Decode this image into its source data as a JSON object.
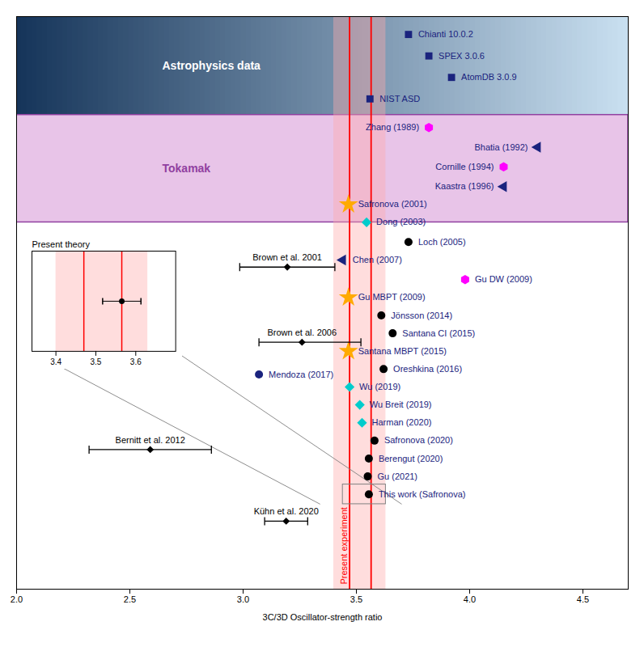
{
  "chart_data": {
    "type": "scatter",
    "xlabel": "3C/3D Oscillator-strength ratio",
    "xlim": [
      2.0,
      4.7
    ],
    "xticks": [
      {
        "value": 2.0,
        "label": "2.0"
      },
      2.5,
      {
        "value": 3.0,
        "label": "3.0"
      },
      3.5,
      {
        "value": 4.0,
        "label": "4.0"
      },
      4.5
    ],
    "ylim": [
      0,
      32
    ],
    "yticks": [],
    "tick_labels": "x",
    "bands": [
      {
        "label": "Astrophysics data",
        "y1": 26.5,
        "y2": 32.0,
        "gradient": [
          "#16355a",
          "#c8dff0"
        ],
        "label_color": "#ffffff"
      },
      {
        "label": "Tokamak",
        "y1": 20.5,
        "y2": 26.5,
        "color": "#e8c4e8",
        "border_color": "#9040a0",
        "label_color": "#9040a0"
      }
    ],
    "present_experiment": {
      "label": "Present experiment",
      "x": [
        3.47,
        3.565
      ],
      "band": [
        3.4,
        3.63
      ],
      "color": "red",
      "band_color": "#ffaaaa"
    },
    "points": [
      {
        "x": 3.73,
        "y": 31.0,
        "label": "Chianti 10.0.2",
        "marker": "square",
        "color": "#1a237e",
        "label_color": "#1a237e",
        "label_side": "right"
      },
      {
        "x": 3.82,
        "y": 29.8,
        "label": "SPEX 3.0.6",
        "marker": "square",
        "color": "#1a237e",
        "label_color": "#1a237e",
        "label_side": "right"
      },
      {
        "x": 3.92,
        "y": 28.6,
        "label": "AtomDB 3.0.9",
        "marker": "square",
        "color": "#1a237e",
        "label_color": "#1a237e",
        "label_side": "right"
      },
      {
        "x": 3.56,
        "y": 27.4,
        "label": "NIST ASD",
        "marker": "square",
        "color": "#1a237e",
        "label_color": "#1a237e",
        "label_side": "right"
      },
      {
        "x": 3.82,
        "y": 25.8,
        "label": "Zhang (1989)",
        "marker": "hexagon",
        "color": "#ff00ff",
        "label_color": "#1a237e",
        "label_side": "left"
      },
      {
        "x": 4.3,
        "y": 24.7,
        "label": "Bhatia (1992)",
        "marker": "triangle-left",
        "color": "#1a237e",
        "label_color": "#1a237e",
        "label_side": "left"
      },
      {
        "x": 4.15,
        "y": 23.6,
        "label": "Cornille (1994)",
        "marker": "hexagon",
        "color": "#ff00ff",
        "label_color": "#1a237e",
        "label_side": "left"
      },
      {
        "x": 4.15,
        "y": 22.5,
        "label": "Kaastra (1996)",
        "marker": "triangle-left",
        "color": "#1a237e",
        "label_color": "#1a237e",
        "label_side": "left"
      },
      {
        "x": 3.465,
        "y": 21.5,
        "label": "Safronova (2001)",
        "marker": "star",
        "color": "#ffaa00",
        "label_color": "#1a237e",
        "label_side": "right"
      },
      {
        "x": 3.545,
        "y": 20.5,
        "label": "Dong (2003)",
        "marker": "diamond",
        "color": "#00cccc",
        "label_color": "#1a237e",
        "label_side": "right"
      },
      {
        "x": 3.73,
        "y": 19.4,
        "label": "Loch (2005)",
        "marker": "circle",
        "color": "#000000",
        "label_color": "#1a237e",
        "label_side": "right"
      },
      {
        "x": 3.44,
        "y": 18.4,
        "label": "Chen (2007)",
        "marker": "triangle-left",
        "color": "#1a237e",
        "label_color": "#1a237e",
        "label_side": "right"
      },
      {
        "x": 3.98,
        "y": 17.3,
        "label": "Gu DW (2009)",
        "marker": "hexagon",
        "color": "#ff00ff",
        "label_color": "#1a237e",
        "label_side": "right"
      },
      {
        "x": 3.465,
        "y": 16.3,
        "label": "Gu MBPT (2009)",
        "marker": "star",
        "color": "#ffaa00",
        "label_color": "#1a237e",
        "label_side": "right"
      },
      {
        "x": 3.61,
        "y": 15.3,
        "label": "Jönsson (2014)",
        "marker": "circle",
        "color": "#000000",
        "label_color": "#1a237e",
        "label_side": "right"
      },
      {
        "x": 3.66,
        "y": 14.3,
        "label": "Santana CI (2015)",
        "marker": "circle",
        "color": "#000000",
        "label_color": "#1a237e",
        "label_side": "right"
      },
      {
        "x": 3.465,
        "y": 13.3,
        "label": "Santana MBPT (2015)",
        "marker": "star",
        "color": "#ffaa00",
        "label_color": "#1a237e",
        "label_side": "right"
      },
      {
        "x": 3.62,
        "y": 12.3,
        "label": "Oreshkina (2016)",
        "marker": "circle",
        "color": "#000000",
        "label_color": "#1a237e",
        "label_side": "right"
      },
      {
        "x": 3.47,
        "y": 11.3,
        "label": "Wu (2019)",
        "marker": "diamond",
        "color": "#00cccc",
        "label_color": "#1a237e",
        "label_side": "right"
      },
      {
        "x": 3.515,
        "y": 10.3,
        "label": "Wu Breit (2019)",
        "marker": "diamond",
        "color": "#00cccc",
        "label_color": "#1a237e",
        "label_side": "right"
      },
      {
        "x": 3.525,
        "y": 9.3,
        "label": "Harman (2020)",
        "marker": "diamond",
        "color": "#00cccc",
        "label_color": "#1a237e",
        "label_side": "right"
      },
      {
        "x": 3.58,
        "y": 8.3,
        "label": "Safronova (2020)",
        "marker": "circle",
        "color": "#000000",
        "label_color": "#1a237e",
        "label_side": "right"
      },
      {
        "x": 3.555,
        "y": 7.3,
        "label": "Berengut (2020)",
        "marker": "circle",
        "color": "#000000",
        "label_color": "#1a237e",
        "label_side": "right"
      },
      {
        "x": 3.55,
        "y": 6.3,
        "label": "Gu (2021)",
        "marker": "circle",
        "color": "#000000",
        "label_color": "#1a237e",
        "label_side": "right"
      },
      {
        "x": 3.555,
        "y": 5.3,
        "label": "This work (Safronova)",
        "marker": "circle",
        "color": "#000000",
        "label_color": "#1a237e",
        "label_side": "right"
      },
      {
        "x": 3.07,
        "y": 12.0,
        "label": "Mendoza (2017)",
        "marker": "circle",
        "color": "#1a237e",
        "label_color": "#1a237e",
        "label_side": "right"
      }
    ],
    "experiments": [
      {
        "x": 3.195,
        "xerr": 0.21,
        "y": 18.0,
        "label": "Brown et al. 2001",
        "marker": "diamond",
        "color": "black"
      },
      {
        "x": 3.26,
        "xerr_lo": 0.19,
        "xerr_hi": 0.26,
        "y": 13.8,
        "label": "Brown et al. 2006",
        "marker": "diamond",
        "color": "black"
      },
      {
        "x": 2.59,
        "xerr": 0.27,
        "y": 7.8,
        "label": "Bernitt et al. 2012",
        "marker": "diamond",
        "color": "black"
      },
      {
        "x": 3.19,
        "xerr": 0.095,
        "y": 3.8,
        "label": "Kühn et al. 2020",
        "marker": "diamond",
        "color": "black"
      }
    ],
    "highlight_box": {
      "x1": 3.44,
      "x2": 3.63,
      "y": 5.3,
      "color": "gray"
    },
    "inset": {
      "title": "Present theory",
      "xlim": [
        3.34,
        3.7
      ],
      "xticks": [
        3.4,
        3.5,
        3.6
      ],
      "ylim": [
        0,
        1
      ],
      "yticks": [],
      "point": {
        "x": 3.565,
        "y": 0.5,
        "xerr": 0.048,
        "marker": "circle",
        "color": "black"
      },
      "present_experiment": {
        "x": [
          3.47,
          3.565
        ],
        "band": [
          3.4,
          3.63
        ]
      }
    }
  }
}
